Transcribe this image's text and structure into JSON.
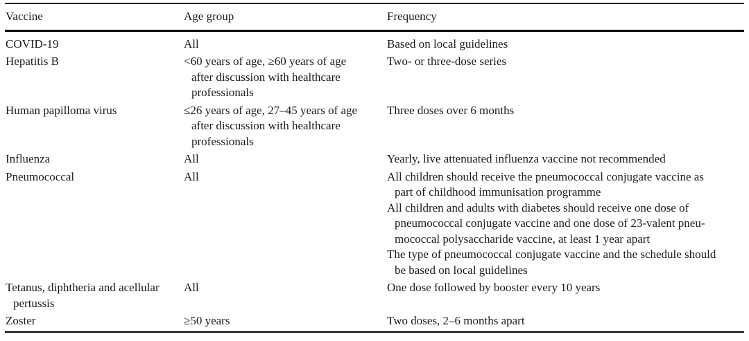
{
  "page": {
    "background": "#ffffff",
    "text_color": "#1b1b1b",
    "rule_color": "#000000"
  },
  "table": {
    "columns": [
      {
        "label": "Vaccine"
      },
      {
        "label": "Age group"
      },
      {
        "label": "Frequency"
      }
    ],
    "rows": [
      {
        "vaccine": [
          [
            "COVID-19"
          ]
        ],
        "age_group": [
          [
            "All"
          ]
        ],
        "frequency": [
          [
            "Based on local guidelines"
          ]
        ]
      },
      {
        "vaccine": [
          [
            "Hepatitis B"
          ]
        ],
        "age_group": [
          [
            "<60 years of age, ≥60 years of age",
            "after discussion with healthcare",
            "professionals"
          ]
        ],
        "frequency": [
          [
            "Two- or three-dose series"
          ]
        ]
      },
      {
        "vaccine": [
          [
            "Human papilloma virus"
          ]
        ],
        "age_group": [
          [
            "≤26 years of age, 27–45 years of age",
            "after discussion with healthcare",
            "professionals"
          ]
        ],
        "frequency": [
          [
            "Three doses over 6 months"
          ]
        ]
      },
      {
        "vaccine": [
          [
            "Influenza"
          ]
        ],
        "age_group": [
          [
            "All"
          ]
        ],
        "frequency": [
          [
            "Yearly, live attenuated influenza vaccine not recommended"
          ]
        ]
      },
      {
        "vaccine": [
          [
            "Pneumococcal"
          ]
        ],
        "age_group": [
          [
            "All"
          ]
        ],
        "frequency": [
          [
            "All children should receive the pneumococcal conjugate vaccine as",
            "part of childhood immunisation programme"
          ],
          [
            "All children and adults with diabetes should receive one dose of",
            "pneumococcal conjugate vaccine and one dose of 23-valent pneu-",
            "mococcal polysaccharide vaccine, at least 1 year apart"
          ],
          [
            "The type of pneumococcal conjugate vaccine and the schedule should",
            "be based on local guidelines"
          ]
        ]
      },
      {
        "vaccine": [
          [
            "Tetanus, diphtheria and acellular",
            "pertussis"
          ]
        ],
        "age_group": [
          [
            "All"
          ]
        ],
        "frequency": [
          [
            "One dose followed by booster every 10 years"
          ]
        ]
      },
      {
        "vaccine": [
          [
            "Zoster"
          ]
        ],
        "age_group": [
          [
            "≥50 years"
          ]
        ],
        "frequency": [
          [
            "Two doses, 2–6 months apart"
          ]
        ]
      }
    ]
  },
  "chart_data": {
    "type": "table",
    "columns": [
      "Vaccine",
      "Age group",
      "Frequency"
    ],
    "rows": [
      [
        "COVID-19",
        "All",
        "Based on local guidelines"
      ],
      [
        "Hepatitis B",
        "<60 years of age, ≥60 years of age after discussion with healthcare professionals",
        "Two- or three-dose series"
      ],
      [
        "Human papilloma virus",
        "≤26 years of age, 27–45 years of age after discussion with healthcare professionals",
        "Three doses over 6 months"
      ],
      [
        "Influenza",
        "All",
        "Yearly, live attenuated influenza vaccine not recommended"
      ],
      [
        "Pneumococcal",
        "All",
        "All children should receive the pneumococcal conjugate vaccine as part of childhood immunisation programme; All children and adults with diabetes should receive one dose of pneumococcal conjugate vaccine and one dose of 23-valent pneumococcal polysaccharide vaccine, at least 1 year apart; The type of pneumococcal conjugate vaccine and the schedule should be based on local guidelines"
      ],
      [
        "Tetanus, diphtheria and acellular pertussis",
        "All",
        "One dose followed by booster every 10 years"
      ],
      [
        "Zoster",
        "≥50 years",
        "Two doses, 2–6 months apart"
      ]
    ]
  }
}
